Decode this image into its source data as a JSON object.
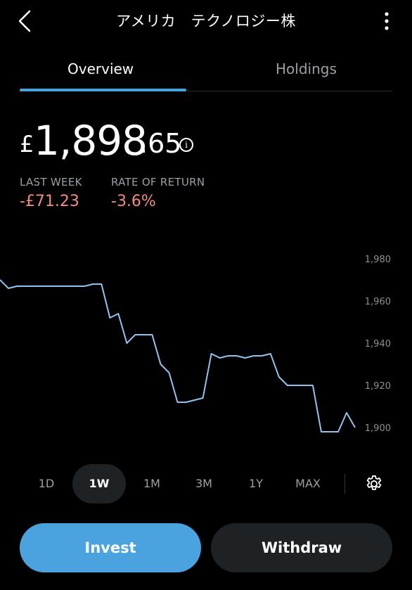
{
  "header": {
    "title": "アメリカ　テクノロジー株"
  },
  "tabs": [
    {
      "label": "Overview",
      "active": true
    },
    {
      "label": "Holdings",
      "active": false
    }
  ],
  "value": {
    "currency": "£",
    "main": "1,898",
    "decimal": ".65"
  },
  "stats": {
    "last_week_label": "LAST WEEK",
    "last_week_value": "-£71.23",
    "return_label": "RATE OF RETURN",
    "return_value": "-3.6%"
  },
  "chart_data": {
    "type": "line",
    "yticks": [
      "1,980",
      "1,960",
      "1,940",
      "1,920",
      "1,900"
    ],
    "ylim": [
      1900,
      1980
    ],
    "series": [
      {
        "values": [
          1970,
          1966,
          1967,
          1967,
          1967,
          1967,
          1967,
          1967,
          1967,
          1967,
          1967,
          1968,
          1968,
          1952,
          1954,
          1940,
          1944,
          1944,
          1944,
          1930,
          1926,
          1912,
          1912,
          1913,
          1914,
          1935,
          1933,
          1934,
          1934,
          1933,
          1934,
          1934,
          1935,
          1924,
          1920,
          1920,
          1920,
          1920,
          1898,
          1898,
          1898,
          1907,
          1900
        ]
      }
    ],
    "line_color": "#8ec5f0"
  },
  "ranges": [
    "1D",
    "1W",
    "1M",
    "3M",
    "1Y",
    "MAX"
  ],
  "active_range": "1W",
  "actions": {
    "invest": "Invest",
    "withdraw": "Withdraw"
  },
  "colors": {
    "accent": "#4aa3df",
    "negative": "#f28b82"
  }
}
